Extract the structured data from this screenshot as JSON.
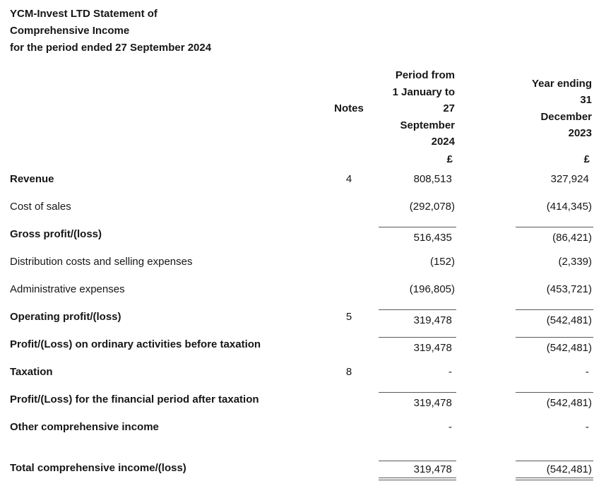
{
  "title": {
    "lines": [
      "YCM-Invest LTD Statement of",
      "Comprehensive Income",
      "for the period ended 27 September 2024"
    ]
  },
  "columns": {
    "notes": "Notes",
    "period_2024": "Period from\n1 January to\n27\nSeptember\n2024",
    "period_2023": "Year ending\n31\nDecember\n2023",
    "currency_2024": "£",
    "currency_2023": "£"
  },
  "rows": [
    {
      "label": "Revenue",
      "note": "4",
      "v2024": "808,513 ",
      "v2023": "327,924 "
    },
    {
      "label": "Cost of sales",
      "note": "",
      "v2024": "(292,078)",
      "v2023": "(414,345)"
    },
    {
      "label": "Gross profit/(loss)",
      "note": "",
      "v2024": "516,435 ",
      "v2023": "(86,421)"
    },
    {
      "label": "Distribution costs and selling expenses",
      "note": "",
      "v2024": "(152)",
      "v2023": "(2,339)"
    },
    {
      "label": "Administrative expenses",
      "note": "",
      "v2024": "(196,805)",
      "v2023": "(453,721)"
    },
    {
      "label": "Operating profit/(loss)",
      "note": "5",
      "v2024": "319,478 ",
      "v2023": "(542,481)"
    },
    {
      "label": "Profit/(Loss) on ordinary activities before taxation",
      "note": "",
      "v2024": "319,478 ",
      "v2023": "(542,481)"
    },
    {
      "label": "Taxation",
      "note": "8",
      "v2024": "- ",
      "v2023": "- "
    },
    {
      "label": "Profit/(Loss) for the financial period after taxation",
      "note": "",
      "v2024": "319,478 ",
      "v2023": "(542,481)"
    },
    {
      "label": "Other comprehensive income",
      "note": "",
      "v2024": "- ",
      "v2023": "- "
    },
    {
      "label": "Total comprehensive income/(loss)",
      "note": "",
      "v2024": "319,478 ",
      "v2023": "(542,481)"
    }
  ],
  "colors": {
    "text": "#161616",
    "rule": "#595959",
    "background": "#ffffff"
  }
}
